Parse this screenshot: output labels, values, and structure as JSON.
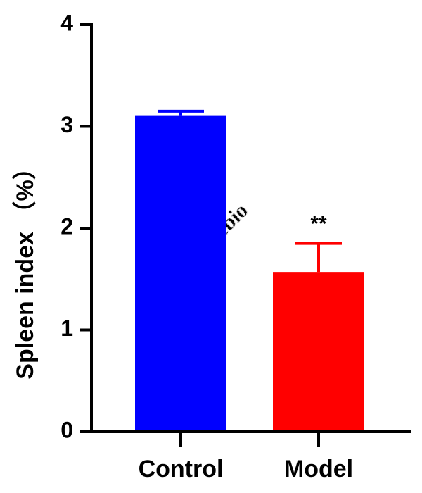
{
  "chart_data": {
    "type": "bar",
    "y_label": "Spleen index （%）",
    "categories": [
      "Control",
      "Model"
    ],
    "values": [
      3.11,
      1.57
    ],
    "errors": [
      0.04,
      0.28
    ],
    "colors": [
      "#0000ff",
      "#ff0000"
    ],
    "ylim": [
      0,
      4
    ],
    "yticks": [
      0,
      1,
      2,
      3,
      4
    ],
    "grid": false,
    "annotations": [
      {
        "category": "Model",
        "text": "**"
      }
    ],
    "watermark": "Servicebio"
  }
}
